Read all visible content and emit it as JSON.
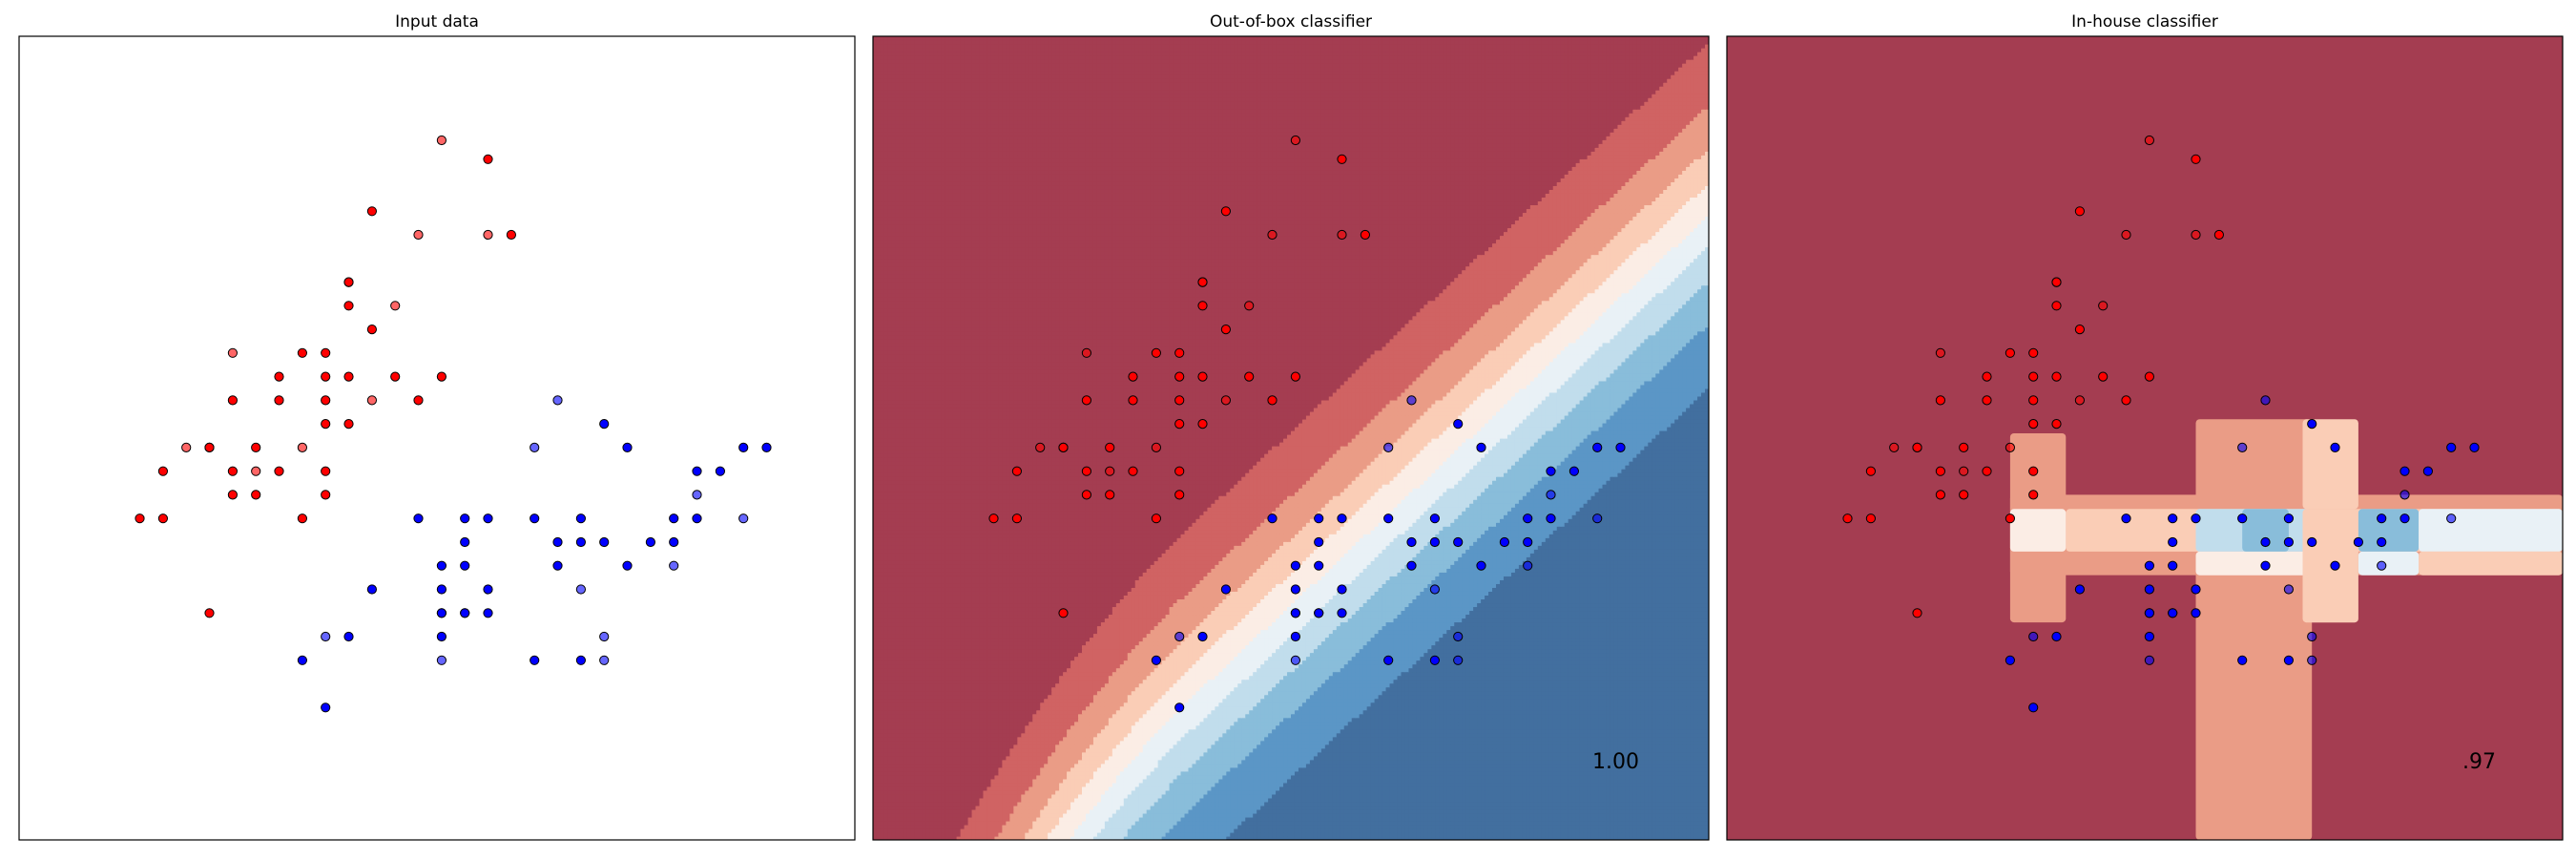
{
  "chart_data": [
    {
      "type": "scatter",
      "title": "Input data",
      "xlim": [
        -1.0,
        17.0
      ],
      "ylim": [
        -1.0,
        16.0
      ],
      "grid": false,
      "classes": [
        "red",
        "blue"
      ],
      "train_points": [
        [
          9.1,
          13.4
        ],
        [
          6.6,
          12.3
        ],
        [
          9.6,
          11.8
        ],
        [
          6.1,
          10.8
        ],
        [
          6.1,
          10.3
        ],
        [
          6.6,
          9.8
        ],
        [
          5.1,
          9.3
        ],
        [
          5.6,
          9.3
        ],
        [
          4.6,
          8.8
        ],
        [
          5.6,
          8.8
        ],
        [
          6.1,
          8.8
        ],
        [
          7.1,
          8.8
        ],
        [
          8.1,
          8.8
        ],
        [
          3.6,
          8.3
        ],
        [
          4.6,
          8.3
        ],
        [
          5.6,
          8.3
        ],
        [
          7.6,
          8.3
        ],
        [
          5.6,
          7.8
        ],
        [
          6.1,
          7.8
        ],
        [
          3.1,
          7.3
        ],
        [
          4.1,
          7.3
        ],
        [
          2.1,
          6.8
        ],
        [
          3.6,
          6.8
        ],
        [
          4.6,
          6.8
        ],
        [
          5.6,
          6.8
        ],
        [
          3.6,
          6.3
        ],
        [
          4.1,
          6.3
        ],
        [
          5.6,
          6.3
        ],
        [
          1.6,
          5.8
        ],
        [
          2.1,
          5.8
        ],
        [
          5.1,
          5.8
        ],
        [
          3.1,
          3.8
        ],
        [
          11.6,
          7.8
        ],
        [
          12.1,
          7.3
        ],
        [
          14.6,
          7.3
        ],
        [
          15.1,
          7.3
        ],
        [
          13.6,
          6.8
        ],
        [
          14.1,
          6.8
        ],
        [
          7.6,
          5.8
        ],
        [
          8.6,
          5.8
        ],
        [
          9.1,
          5.8
        ],
        [
          10.1,
          5.8
        ],
        [
          11.1,
          5.8
        ],
        [
          13.1,
          5.8
        ],
        [
          13.6,
          5.8
        ],
        [
          8.6,
          5.3
        ],
        [
          10.6,
          5.3
        ],
        [
          11.1,
          5.3
        ],
        [
          11.6,
          5.3
        ],
        [
          12.6,
          5.3
        ],
        [
          13.1,
          5.3
        ],
        [
          8.1,
          4.8
        ],
        [
          8.6,
          4.8
        ],
        [
          10.6,
          4.8
        ],
        [
          12.1,
          4.8
        ],
        [
          6.6,
          4.3
        ],
        [
          8.1,
          4.3
        ],
        [
          9.1,
          4.3
        ],
        [
          8.6,
          3.8
        ],
        [
          9.1,
          3.8
        ],
        [
          8.1,
          3.8
        ],
        [
          6.1,
          3.3
        ],
        [
          8.1,
          3.3
        ],
        [
          5.1,
          2.8
        ],
        [
          10.1,
          2.8
        ],
        [
          11.1,
          2.8
        ],
        [
          5.6,
          1.8
        ]
      ],
      "train_labels": [
        0,
        0,
        0,
        0,
        0,
        0,
        0,
        0,
        0,
        0,
        0,
        0,
        0,
        0,
        0,
        0,
        0,
        0,
        0,
        0,
        0,
        0,
        0,
        0,
        0,
        0,
        0,
        0,
        0,
        0,
        0,
        0,
        1,
        1,
        1,
        1,
        1,
        1,
        1,
        1,
        1,
        1,
        1,
        1,
        1,
        1,
        1,
        1,
        1,
        1,
        1,
        1,
        1,
        1,
        1,
        1,
        1,
        1,
        1,
        1,
        1,
        1,
        1,
        1,
        1,
        1,
        1
      ],
      "test_points": [
        [
          8.1,
          13.8
        ],
        [
          7.6,
          11.8
        ],
        [
          9.1,
          11.8
        ],
        [
          6.1,
          10.8
        ],
        [
          7.1,
          10.3
        ],
        [
          3.6,
          9.3
        ],
        [
          6.6,
          8.3
        ],
        [
          2.6,
          7.3
        ],
        [
          3.1,
          7.3
        ],
        [
          5.1,
          7.3
        ],
        [
          4.1,
          6.8
        ],
        [
          10.6,
          8.3
        ],
        [
          10.1,
          7.3
        ],
        [
          13.6,
          6.3
        ],
        [
          14.6,
          5.8
        ],
        [
          13.1,
          4.8
        ],
        [
          11.1,
          4.3
        ],
        [
          8.1,
          3.8
        ],
        [
          8.6,
          3.8
        ],
        [
          11.6,
          3.3
        ],
        [
          5.6,
          3.3
        ],
        [
          8.1,
          2.8
        ],
        [
          11.6,
          2.8
        ]
      ],
      "test_labels": [
        0,
        0,
        0,
        0,
        0,
        0,
        0,
        0,
        0,
        0,
        0,
        1,
        1,
        1,
        1,
        1,
        1,
        1,
        1,
        1,
        1,
        1,
        1
      ]
    },
    {
      "type": "contour",
      "title": "Out-of-box classifier",
      "score": "1.00",
      "xlim": [
        -1.0,
        17.0
      ],
      "ylim": [
        -1.0,
        16.0
      ],
      "decision": "linear",
      "w": [
        0.55,
        -0.6
      ],
      "b": -0.5,
      "levels": [
        0.0,
        0.1,
        0.2,
        0.3,
        0.4,
        0.5,
        0.6,
        0.7,
        0.8,
        0.9,
        1.0
      ],
      "colormap": "RdBu"
    },
    {
      "type": "contour",
      "title": "In-house classifier",
      "score": ".97",
      "xlim": [
        -1.0,
        17.0
      ],
      "ylim": [
        -1.0,
        16.0
      ],
      "decision": "tree",
      "levels": [
        0.0,
        0.1,
        0.2,
        0.3,
        0.4,
        0.5,
        0.6,
        0.7,
        0.8,
        0.9,
        1.0
      ],
      "colormap": "RdBu",
      "background_probability": 0.05,
      "regions": [
        {
          "x": [
            9.1,
            11.6
          ],
          "y": [
            -1.0,
            7.9
          ],
          "p": 0.2
        },
        {
          "x": [
            5.1,
            6.3
          ],
          "y": [
            3.6,
            7.6
          ],
          "p": 0.2
        },
        {
          "x": [
            5.1,
            17.0
          ],
          "y": [
            4.6,
            6.3
          ],
          "p": 0.2
        },
        {
          "x": [
            6.3,
            17.0
          ],
          "y": [
            5.1,
            6.0
          ],
          "p": 0.3
        },
        {
          "x": [
            5.1,
            6.3
          ],
          "y": [
            5.1,
            6.0
          ],
          "p": 0.4
        },
        {
          "x": [
            9.1,
            11.6
          ],
          "y": [
            4.6,
            5.1
          ],
          "p": 0.45
        },
        {
          "x": [
            9.1,
            11.6
          ],
          "y": [
            5.1,
            6.0
          ],
          "p": 0.65
        },
        {
          "x": [
            10.1,
            11.1
          ],
          "y": [
            5.1,
            6.0
          ],
          "p": 0.75
        },
        {
          "x": [
            11.4,
            12.6
          ],
          "y": [
            3.6,
            6.0
          ],
          "p": 0.3
        },
        {
          "x": [
            11.4,
            12.6
          ],
          "y": [
            6.0,
            7.9
          ],
          "p": 0.3
        },
        {
          "x": [
            12.6,
            13.9
          ],
          "y": [
            4.6,
            5.1
          ],
          "p": 0.5
        },
        {
          "x": [
            12.6,
            13.9
          ],
          "y": [
            5.1,
            6.0
          ],
          "p": 0.75
        },
        {
          "x": [
            13.9,
            17.0
          ],
          "y": [
            5.1,
            6.0
          ],
          "p": 0.55
        },
        {
          "x": [
            13.9,
            17.0
          ],
          "y": [
            4.6,
            5.1
          ],
          "p": 0.3
        }
      ]
    }
  ],
  "colors": {
    "red_point": "#ff0000",
    "blue_point": "#0000ff",
    "edge": "#000000",
    "frame": "#000000"
  }
}
